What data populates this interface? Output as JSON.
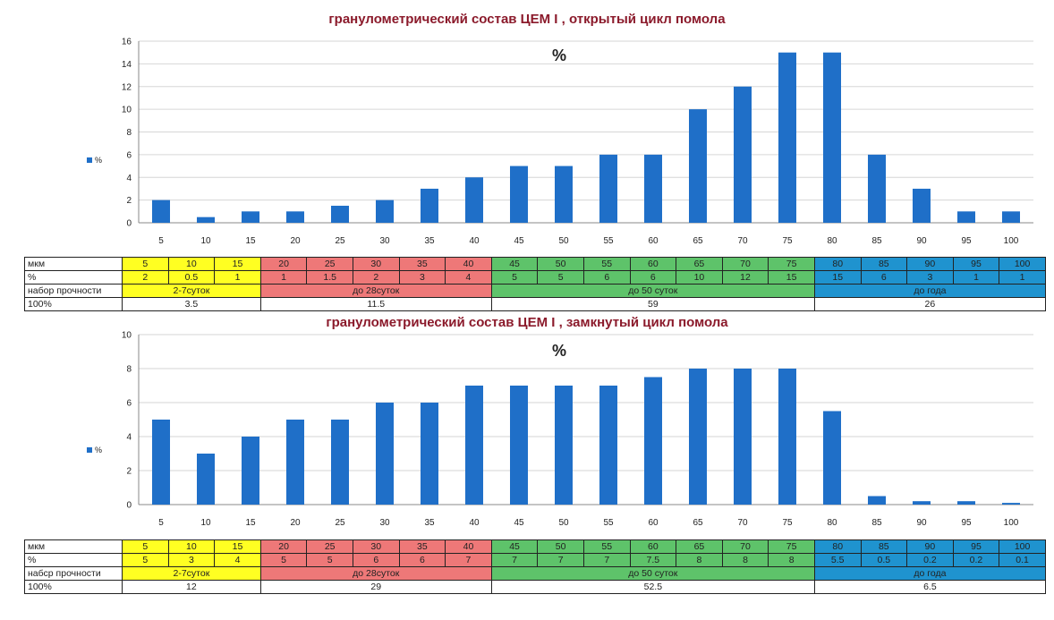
{
  "charts": [
    {
      "title": "гранулометрический состав ЦЕМ I , открытый цикл помола",
      "pct_label": "%",
      "legend": "%",
      "table": {
        "row_labels": [
          "мкм",
          "%",
          "набор прочности",
          "100%"
        ],
        "stage_labels": [
          "2-7суток",
          "до 28суток",
          "до 50 суток",
          "до года"
        ],
        "stage_totals": [
          "3.5",
          "11.5",
          "59",
          "26"
        ]
      }
    },
    {
      "title": "гранулометрический состав ЦЕМ I ,  замкнутый цикл помола",
      "pct_label": "%",
      "legend": "%",
      "table": {
        "row_labels": [
          "мкм",
          "%",
          "набср прочности",
          "100%"
        ],
        "stage_labels": [
          "2-7суток",
          "до 28суток",
          "до 50 суток",
          "до года"
        ],
        "stage_totals": [
          "12",
          "29",
          "52.5",
          "6.5"
        ]
      }
    }
  ],
  "colors": {
    "bar": "#1f6fc8",
    "title": "#8b1a2b",
    "stage": [
      "#ffff22",
      "#ee7878",
      "#5ec36a",
      "#1f93cf"
    ]
  },
  "chart_data": [
    {
      "type": "bar",
      "title": "гранулометрический состав ЦЕМ I , открытый цикл помола",
      "series_name": "%",
      "categories": [
        "5",
        "10",
        "15",
        "20",
        "25",
        "30",
        "35",
        "40",
        "45",
        "50",
        "55",
        "60",
        "65",
        "70",
        "75",
        "80",
        "85",
        "90",
        "95",
        "100"
      ],
      "values": [
        2,
        0.5,
        1,
        1,
        1.5,
        2,
        3,
        4,
        5,
        5,
        6,
        6,
        10,
        12,
        15,
        15,
        6,
        3,
        1,
        1
      ],
      "table_values": [
        "2",
        "0.5",
        "1",
        "1",
        "1.5",
        "2",
        "3",
        "4",
        "5",
        "5",
        "6",
        "6",
        "10",
        "12",
        "15",
        "15",
        "6",
        "3",
        "1",
        "1"
      ],
      "ylim": [
        0,
        16
      ],
      "yticks": [
        0,
        2,
        4,
        6,
        8,
        10,
        12,
        14,
        16
      ],
      "grid": true,
      "legend": "left"
    },
    {
      "type": "bar",
      "title": "гранулометрический состав ЦЕМ I ,  замкнутый цикл помола",
      "series_name": "%",
      "categories": [
        "5",
        "10",
        "15",
        "20",
        "25",
        "30",
        "35",
        "40",
        "45",
        "50",
        "55",
        "60",
        "65",
        "70",
        "75",
        "80",
        "85",
        "90",
        "95",
        "100"
      ],
      "values": [
        5,
        3,
        4,
        5,
        5,
        6,
        6,
        7,
        7,
        7,
        7,
        7.5,
        8,
        8,
        8,
        5.5,
        0.5,
        0.2,
        0.2,
        0.1
      ],
      "table_values": [
        "5",
        "3",
        "4",
        "5",
        "5",
        "6",
        "6",
        "7",
        "7",
        "7",
        "7",
        "7.5",
        "8",
        "8",
        "8",
        "5.5",
        "0.5",
        "0.2",
        "0.2",
        "0.1"
      ],
      "ylim": [
        0,
        10
      ],
      "yticks": [
        0,
        2,
        4,
        6,
        8,
        10
      ],
      "grid": true,
      "legend": "left"
    }
  ]
}
